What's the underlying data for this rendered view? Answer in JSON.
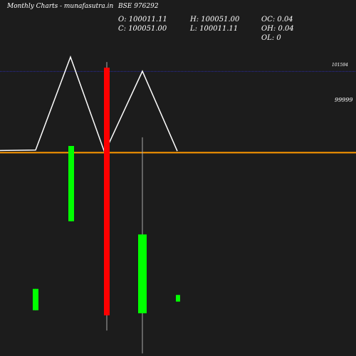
{
  "header": {
    "brand": "Monthly Charts",
    "site": "- munafasutra.in",
    "symbol": "BSE 976292",
    "open": "O: 100011.11",
    "close": "C: 100051.00",
    "high": "H: 100051.00",
    "low": "L: 100011.11",
    "oc": "OC: 0.04",
    "oh": "OH: 0.04",
    "ol": "OL: 0"
  },
  "chart_data": {
    "type": "candlestick",
    "title": "",
    "y_tick_labels": [
      "101594",
      "99999"
    ],
    "reference_lines": [
      {
        "value": 101594,
        "color": "#2a2aa8",
        "style": "dotted"
      },
      {
        "value": 99999,
        "color": "#ff9900",
        "style": "solid"
      }
    ],
    "ylim": [
      96000,
      103000
    ],
    "candles": [
      {
        "open": 96900,
        "close": 97320,
        "high": 97320,
        "low": 96900,
        "color": "#00ff00"
      },
      {
        "open": 98650,
        "close": 100130,
        "high": 100130,
        "low": 98650,
        "color": "#00ff00"
      },
      {
        "open": 101670,
        "close": 96800,
        "high": 101780,
        "low": 96500,
        "color": "#ff0000"
      },
      {
        "open": 96840,
        "close": 98390,
        "high": 100300,
        "low": 96050,
        "color": "#00ff00"
      },
      {
        "open": 97070,
        "close": 97200,
        "high": 97200,
        "low": 97070,
        "color": "#00ff00"
      }
    ],
    "line_series": [
      {
        "x": [
          0,
          1,
          2,
          3,
          4,
          5
        ],
        "values": [
          100040,
          100050,
          101880,
          100000,
          101600,
          100030
        ],
        "color": "#ffffff"
      }
    ]
  }
}
